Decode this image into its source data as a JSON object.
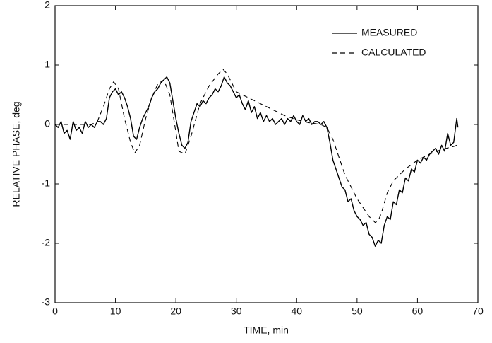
{
  "chart_data": {
    "type": "line",
    "x_label": "TIME, min",
    "y_label": "RELATIVE PHASE, deg",
    "xlim": [
      0,
      70
    ],
    "xticks": [
      0,
      10,
      20,
      30,
      40,
      50,
      60,
      70
    ],
    "ylim": [
      -3,
      2
    ],
    "yticks": [
      -3,
      -2,
      -1,
      0,
      1,
      2
    ],
    "grid": false,
    "legend": "upper right",
    "series": [
      {
        "name": "MEASURED",
        "color": "#000000",
        "style": "solid",
        "x": [
          0,
          0.5,
          1,
          1.5,
          2,
          2.5,
          3,
          3.5,
          4,
          4.5,
          5,
          5.5,
          6,
          6.5,
          7,
          7.5,
          8,
          8.5,
          9,
          9.5,
          10,
          10.5,
          11,
          11.5,
          12,
          12.5,
          13,
          13.5,
          14,
          14.5,
          15,
          15.5,
          16,
          16.5,
          17,
          17.5,
          18,
          18.5,
          19,
          19.5,
          20,
          20.5,
          21,
          21.5,
          22,
          22.5,
          23,
          23.5,
          24,
          24.5,
          25,
          25.5,
          26,
          26.5,
          27,
          27.5,
          28,
          28.5,
          29,
          29.5,
          30,
          30.5,
          31,
          31.5,
          32,
          32.5,
          33,
          33.5,
          34,
          34.5,
          35,
          35.5,
          36,
          36.5,
          37,
          37.5,
          38,
          38.5,
          39,
          39.5,
          40,
          40.5,
          41,
          41.5,
          42,
          42.5,
          43,
          43.5,
          44,
          44.5,
          45,
          45.5,
          46,
          46.5,
          47,
          47.5,
          48,
          48.5,
          49,
          49.5,
          50,
          50.5,
          51,
          51.5,
          52,
          52.5,
          53,
          53.5,
          54,
          54.5,
          55,
          55.5,
          56,
          56.5,
          57,
          57.5,
          58,
          58.5,
          59,
          59.5,
          60,
          60.5,
          61,
          61.5,
          62,
          62.5,
          63,
          63.5,
          64,
          64.5,
          65,
          65.5,
          66,
          66.5,
          66.7
        ],
        "values": [
          0,
          -0.05,
          0.05,
          -0.15,
          -0.1,
          -0.25,
          0.05,
          -0.1,
          -0.05,
          -0.15,
          0.05,
          -0.05,
          0,
          -0.05,
          0.05,
          0.05,
          0,
          0.1,
          0.45,
          0.55,
          0.6,
          0.5,
          0.55,
          0.45,
          0.3,
          0.1,
          -0.2,
          -0.25,
          -0.05,
          0.1,
          0.2,
          0.3,
          0.45,
          0.55,
          0.6,
          0.7,
          0.75,
          0.8,
          0.7,
          0.4,
          0.1,
          -0.15,
          -0.35,
          -0.4,
          -0.3,
          0.05,
          0.2,
          0.35,
          0.3,
          0.4,
          0.35,
          0.45,
          0.5,
          0.6,
          0.55,
          0.65,
          0.8,
          0.7,
          0.65,
          0.55,
          0.45,
          0.5,
          0.35,
          0.25,
          0.4,
          0.2,
          0.3,
          0.1,
          0.2,
          0.05,
          0.15,
          0.05,
          0.1,
          0,
          0.05,
          0.1,
          0,
          0.1,
          0.05,
          0.15,
          0.05,
          0,
          0.15,
          0.05,
          0.1,
          0,
          0.05,
          0.05,
          0,
          0.05,
          -0.05,
          -0.3,
          -0.6,
          -0.75,
          -0.9,
          -1.05,
          -1.1,
          -1.3,
          -1.25,
          -1.45,
          -1.55,
          -1.6,
          -1.7,
          -1.65,
          -1.85,
          -1.9,
          -2.05,
          -1.95,
          -2,
          -1.7,
          -1.55,
          -1.6,
          -1.3,
          -1.35,
          -1.1,
          -1.15,
          -0.9,
          -0.95,
          -0.75,
          -0.8,
          -0.6,
          -0.65,
          -0.55,
          -0.6,
          -0.5,
          -0.45,
          -0.4,
          -0.5,
          -0.35,
          -0.45,
          -0.15,
          -0.35,
          -0.3,
          0.1,
          -0.05
        ]
      },
      {
        "name": "CALCULATED",
        "color": "#000000",
        "style": "dashed",
        "x": [
          0,
          2,
          4,
          6,
          7,
          8,
          9,
          9.7,
          10.5,
          11.5,
          12.5,
          13.2,
          14,
          15,
          16,
          17,
          18,
          19,
          19.8,
          20.5,
          21.5,
          22.5,
          24,
          25.5,
          27,
          27.8,
          28.5,
          30,
          32,
          34,
          36,
          38,
          40,
          42,
          44,
          45,
          46,
          47,
          48,
          49,
          50,
          51,
          52,
          53,
          53.5,
          54,
          55,
          56,
          57,
          58,
          60,
          62,
          64,
          66,
          67
        ],
        "values": [
          0,
          0,
          0,
          0,
          0.05,
          0.3,
          0.6,
          0.72,
          0.6,
          0.1,
          -0.3,
          -0.48,
          -0.35,
          0.1,
          0.45,
          0.68,
          0.75,
          0.5,
          0,
          -0.45,
          -0.5,
          -0.2,
          0.35,
          0.65,
          0.85,
          0.93,
          0.85,
          0.55,
          0.45,
          0.35,
          0.25,
          0.15,
          0.08,
          0.03,
          0,
          -0.05,
          -0.25,
          -0.55,
          -0.85,
          -1.05,
          -1.25,
          -1.4,
          -1.55,
          -1.65,
          -1.62,
          -1.5,
          -1.15,
          -0.95,
          -0.85,
          -0.75,
          -0.6,
          -0.5,
          -0.42,
          -0.37,
          -0.33
        ]
      }
    ]
  }
}
